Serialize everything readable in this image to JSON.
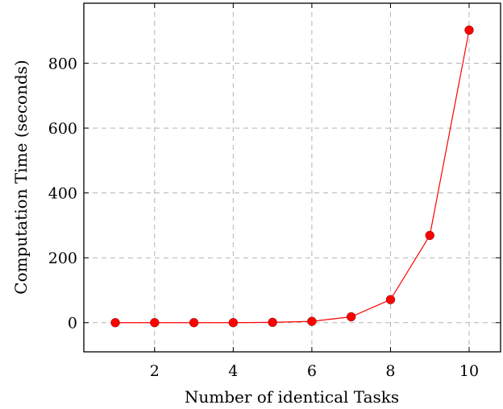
{
  "chart_data": {
    "type": "line",
    "xlabel": "Number of identical Tasks",
    "ylabel": "Computation Time (seconds)",
    "xlim": [
      0.2,
      10.8
    ],
    "ylim": [
      -90,
      985
    ],
    "x_ticks": [
      2,
      4,
      6,
      8,
      10
    ],
    "y_ticks": [
      0,
      200,
      400,
      600,
      800
    ],
    "grid": true,
    "series": [
      {
        "color": "#ff0000",
        "marker": "circle",
        "x": [
          1,
          2,
          3,
          4,
          5,
          6,
          7,
          8,
          9,
          10
        ],
        "y": [
          0,
          0,
          0,
          0,
          1,
          4,
          18,
          71,
          269,
          902
        ]
      }
    ]
  }
}
